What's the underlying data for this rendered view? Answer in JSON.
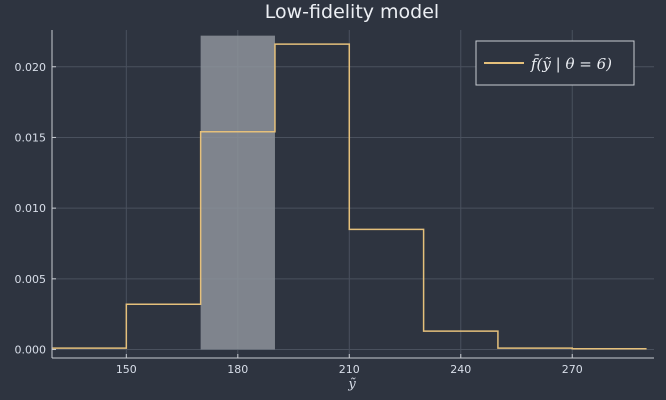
{
  "chart_data": {
    "type": "histogram",
    "title": "Low-fidelity model",
    "xlabel": "ỹ",
    "ylabel": "",
    "xlim": [
      130,
      292
    ],
    "ylim": [
      -0.0006,
      0.0226
    ],
    "x_ticks": [
      150,
      180,
      210,
      240,
      270
    ],
    "y_ticks": [
      0.0,
      0.005,
      0.01,
      0.015,
      0.02
    ],
    "y_tick_labels": [
      "0.000",
      "0.005",
      "0.010",
      "0.015",
      "0.020"
    ],
    "grid": true,
    "legend_position": "top-right",
    "highlight_region": {
      "x": [
        170,
        190
      ],
      "y": [
        0.0,
        0.0222
      ],
      "color": "#8d939b"
    },
    "series": [
      {
        "name": "f̄(ỹ | θ = 6)",
        "color": "#e5c07b",
        "bin_edges": [
          130,
          150,
          170,
          190,
          210,
          230,
          250,
          270,
          290
        ],
        "values": [
          0.0001,
          0.0032,
          0.0154,
          0.0216,
          0.0085,
          0.0013,
          0.0001,
          5e-05
        ]
      }
    ]
  }
}
